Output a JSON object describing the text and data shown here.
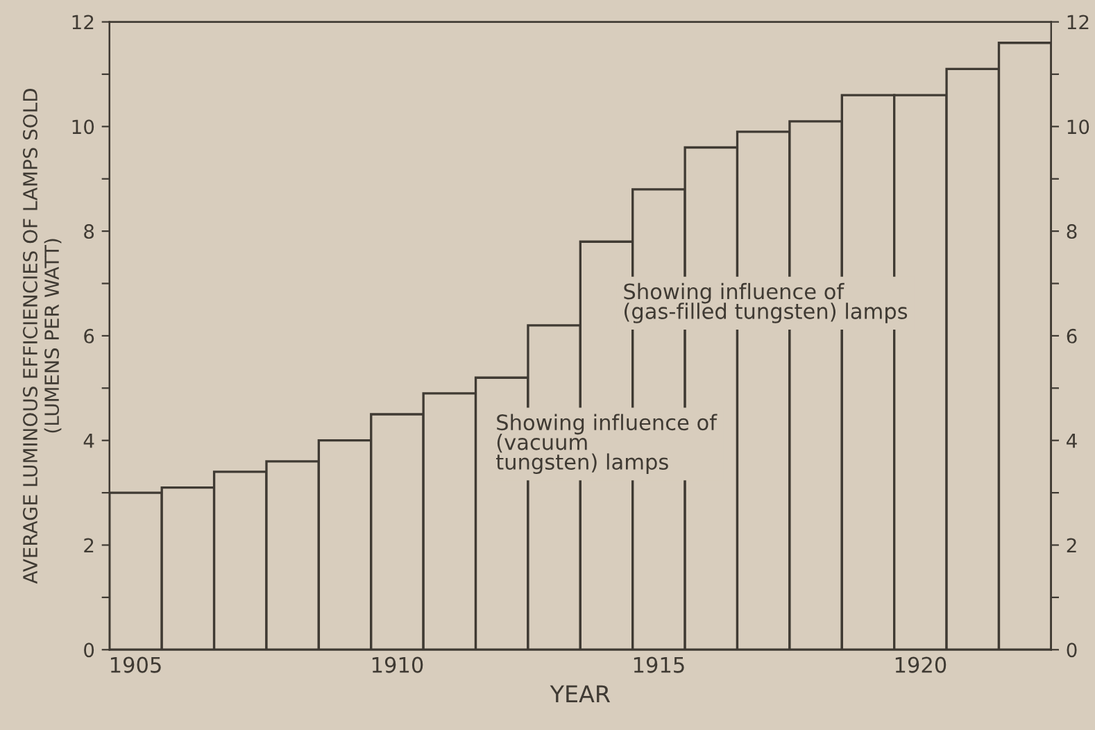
{
  "chart_data": {
    "type": "bar",
    "ylabel": "AVERAGE LUMINOUS EFFICIENCIES OF LAMPS SOLD\n(LUMENS PER WATT)",
    "xlabel": "YEAR",
    "categories": [
      "1905",
      null,
      null,
      null,
      null,
      "1910",
      null,
      null,
      null,
      null,
      "1915",
      null,
      null,
      null,
      null,
      "1920",
      null,
      null
    ],
    "values": [
      3.0,
      3.1,
      3.4,
      3.6,
      4.0,
      4.5,
      4.9,
      5.2,
      6.2,
      7.8,
      8.8,
      9.6,
      9.9,
      10.1,
      10.6,
      10.6,
      11.1,
      11.6
    ],
    "color": "#d8cdbd",
    "ylim": [
      0,
      12
    ],
    "yticks": [
      0,
      {
        "value": 1,
        "label": null
      },
      2,
      {
        "value": 3,
        "label": null
      },
      4,
      {
        "value": 5,
        "label": null
      },
      6,
      {
        "value": 7,
        "label": null
      },
      8,
      {
        "value": 9,
        "label": null
      },
      10,
      {
        "value": 11,
        "label": null
      },
      12
    ],
    "y2lim": [
      0,
      12
    ],
    "y2ticks": [
      0,
      {
        "value": 1,
        "label": null
      },
      2,
      {
        "value": 3,
        "label": null
      },
      4,
      {
        "value": 5,
        "label": null
      },
      6,
      {
        "value": 7,
        "label": null
      },
      8,
      {
        "value": 9,
        "label": null
      },
      10,
      {
        "value": 11,
        "label": null
      },
      12
    ],
    "annotations": [
      "Showing influence of\n(vacuum\ntungsten) lamps",
      "Showing influence of\n(gas-filled tungsten) lamps"
    ],
    "grid": false
  }
}
